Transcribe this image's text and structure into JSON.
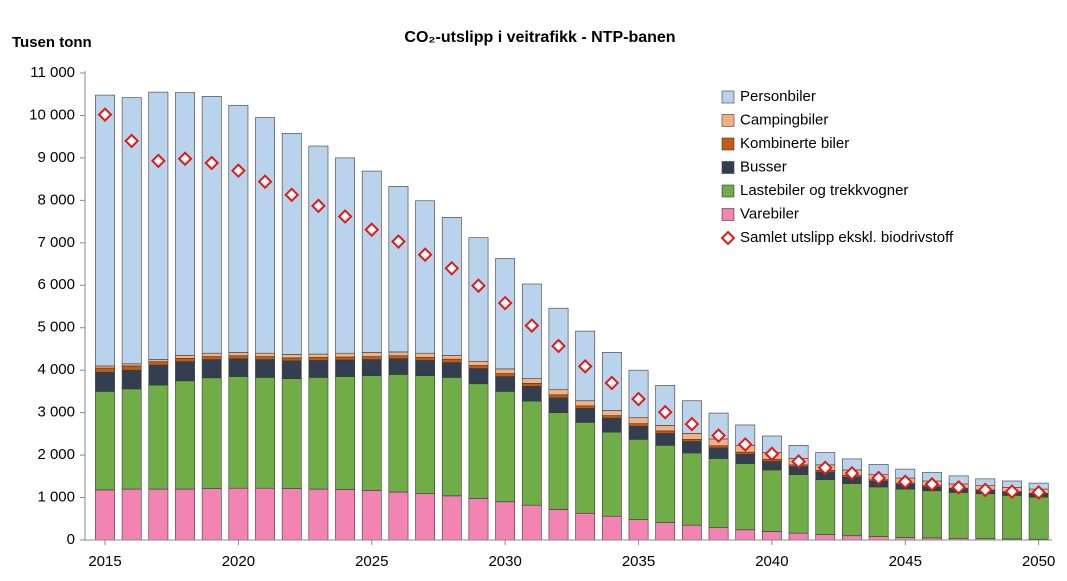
{
  "chart_data": {
    "type": "bar",
    "stacked": true,
    "title": "CO₂-utslipp  i veitrafikk - NTP-banen",
    "y_label": "Tusen tonn",
    "x": [
      2015,
      2016,
      2017,
      2018,
      2019,
      2020,
      2021,
      2022,
      2023,
      2024,
      2025,
      2026,
      2027,
      2028,
      2029,
      2030,
      2031,
      2032,
      2033,
      2034,
      2035,
      2036,
      2037,
      2038,
      2039,
      2040,
      2041,
      2042,
      2043,
      2044,
      2045,
      2046,
      2047,
      2048,
      2049,
      2050
    ],
    "xlim": [
      2014.25,
      2050.5
    ],
    "xticks": [
      2015,
      2020,
      2025,
      2030,
      2035,
      2040,
      2045,
      2050
    ],
    "ylim": [
      0,
      11000
    ],
    "yticks": [
      0,
      {
        "value": 1000,
        "label": "1 000"
      },
      {
        "value": 2000,
        "label": "2 000"
      },
      {
        "value": 3000,
        "label": "3 000"
      },
      {
        "value": 4000,
        "label": "4 000"
      },
      {
        "value": 5000,
        "label": "5 000"
      },
      {
        "value": 6000,
        "label": "6 000"
      },
      {
        "value": 7000,
        "label": "7 000"
      },
      {
        "value": 8000,
        "label": "8 000"
      },
      {
        "value": 9000,
        "label": "9 000"
      },
      {
        "value": 10000,
        "label": "10 000"
      },
      {
        "value": 11000,
        "label": "11 000"
      }
    ],
    "grid": false,
    "legend": "top-right",
    "series": [
      {
        "name": "Personbiler",
        "color": "#b9d3ec",
        "values": [
          6380,
          6270,
          6300,
          6190,
          6050,
          5820,
          5550,
          5210,
          4900,
          4600,
          4270,
          3900,
          3590,
          3250,
          2910,
          2600,
          2230,
          1920,
          1640,
          1370,
          1120,
          940,
          770,
          610,
          480,
          390,
          310,
          290,
          260,
          240,
          210,
          200,
          190,
          160,
          150,
          140
        ]
      },
      {
        "name": "Campingbiler",
        "color": "#f4b183",
        "values": [
          50,
          50,
          50,
          70,
          80,
          80,
          80,
          80,
          80,
          90,
          100,
          90,
          100,
          90,
          100,
          110,
          110,
          120,
          120,
          120,
          140,
          130,
          140,
          160,
          160,
          160,
          150,
          130,
          130,
          120,
          120,
          110,
          100,
          100,
          100,
          100
        ]
      },
      {
        "name": "Kombinerte biler",
        "color": "#c55a11",
        "values": [
          100,
          100,
          80,
          80,
          70,
          70,
          70,
          70,
          70,
          70,
          70,
          70,
          70,
          80,
          70,
          70,
          70,
          70,
          60,
          60,
          60,
          60,
          50,
          50,
          50,
          50,
          40,
          40,
          40,
          30,
          30,
          30,
          20,
          20,
          20,
          20
        ]
      },
      {
        "name": "Busser",
        "color": "#333f50",
        "values": [
          450,
          440,
          470,
          450,
          430,
          420,
          420,
          420,
          400,
          390,
          380,
          370,
          360,
          350,
          360,
          350,
          350,
          350,
          330,
          330,
          310,
          280,
          270,
          250,
          220,
          200,
          190,
          180,
          150,
          140,
          110,
          90,
          80,
          70,
          70,
          70
        ]
      },
      {
        "name": "Lastebiler og trekkvogner",
        "color": "#70ad47",
        "values": [
          2320,
          2360,
          2450,
          2550,
          2610,
          2630,
          2610,
          2590,
          2630,
          2660,
          2700,
          2770,
          2780,
          2790,
          2700,
          2600,
          2450,
          2280,
          2140,
          1980,
          1890,
          1820,
          1700,
          1630,
          1560,
          1450,
          1380,
          1290,
          1230,
          1170,
          1140,
          1110,
          1080,
          1060,
          1025,
          990
        ]
      },
      {
        "name": "Varebiler",
        "color": "#f383b3",
        "values": [
          1180,
          1200,
          1200,
          1200,
          1210,
          1220,
          1220,
          1210,
          1200,
          1190,
          1170,
          1130,
          1090,
          1040,
          980,
          900,
          820,
          720,
          630,
          560,
          480,
          410,
          350,
          290,
          240,
          200,
          160,
          130,
          100,
          80,
          60,
          50,
          40,
          30,
          25,
          20
        ]
      },
      {
        "name": "Samlet utslipp ekskl. biodrivstoff",
        "type": "scatter",
        "marker": "diamond",
        "color": "#e01a1a",
        "values": [
          10020,
          9400,
          8930,
          8980,
          8880,
          8700,
          8440,
          8130,
          7870,
          7620,
          7310,
          7030,
          6720,
          6400,
          5990,
          5580,
          5050,
          4570,
          4090,
          3700,
          3320,
          3010,
          2730,
          2460,
          2250,
          2030,
          1850,
          1700,
          1570,
          1460,
          1370,
          1310,
          1240,
          1180,
          1140,
          1120
        ]
      }
    ]
  }
}
